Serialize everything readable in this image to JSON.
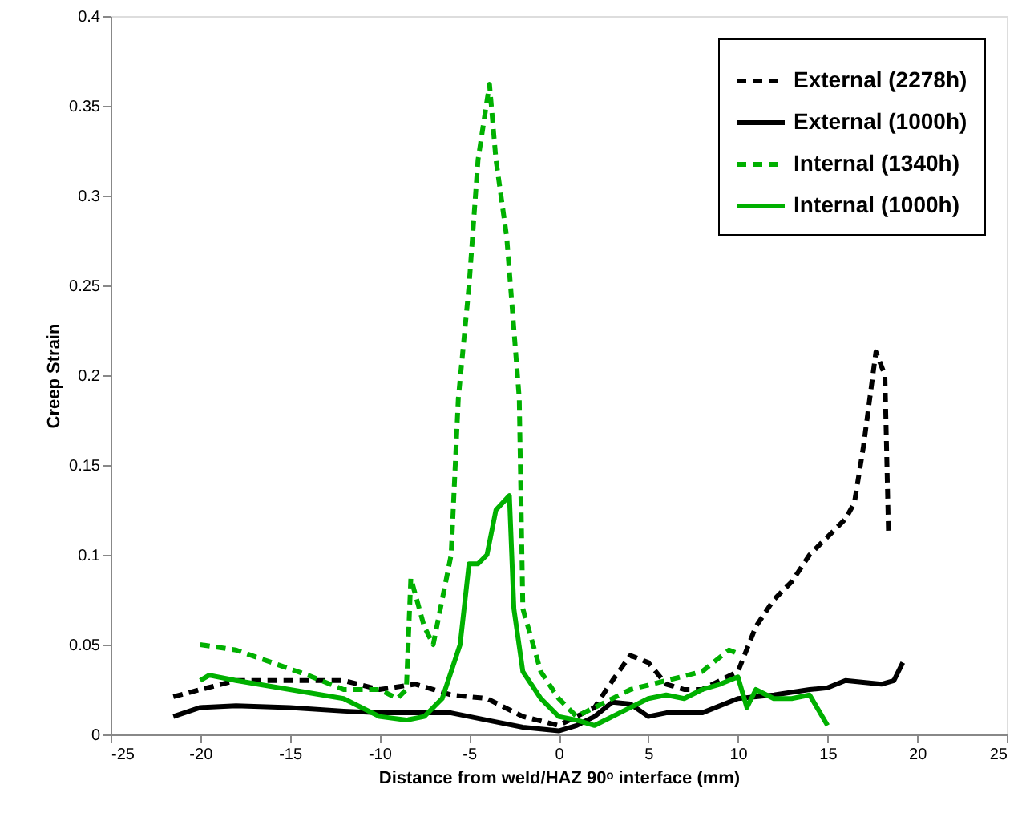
{
  "chart_data": {
    "type": "line",
    "xlabel": "Distance from weld/HAZ 90ᵒ interface (mm)",
    "ylabel": "Creep Strain",
    "xlim": [
      -25,
      25
    ],
    "xticks": [
      -25,
      -20,
      -15,
      -10,
      -5,
      0,
      5,
      10,
      15,
      20,
      25
    ],
    "ylim": [
      0,
      0.4
    ],
    "yticks": [
      0,
      0.05,
      0.1,
      0.15,
      0.2,
      0.25,
      0.3,
      0.35,
      0.4
    ],
    "grid": false,
    "legend": "top right",
    "marker": "none",
    "series": [
      {
        "name": "External (2278h)",
        "color": "#000000",
        "line_style": "dashed",
        "x": [
          -21.5,
          -20,
          -18,
          -15,
          -12,
          -10,
          -8,
          -6,
          -4,
          -2,
          0,
          2,
          3,
          4,
          5,
          6,
          7,
          8,
          9,
          10,
          11,
          12,
          13,
          14,
          15,
          16,
          16.5,
          17,
          17.7,
          18.2,
          18.4
        ],
        "values": [
          0.021,
          0.025,
          0.03,
          0.03,
          0.03,
          0.025,
          0.028,
          0.022,
          0.02,
          0.01,
          0.005,
          0.015,
          0.03,
          0.044,
          0.04,
          0.028,
          0.025,
          0.025,
          0.03,
          0.035,
          0.06,
          0.075,
          0.085,
          0.1,
          0.11,
          0.12,
          0.129,
          0.16,
          0.213,
          0.2,
          0.113
        ]
      },
      {
        "name": "External (1000h)",
        "color": "#000000",
        "line_style": "solid",
        "x": [
          -21.5,
          -20,
          -18,
          -15,
          -12,
          -10,
          -8,
          -6,
          -4,
          -2,
          0,
          1,
          2,
          3,
          4,
          5,
          6,
          8,
          10,
          12,
          14,
          15,
          16,
          18,
          18.7,
          19.2
        ],
        "values": [
          0.01,
          0.015,
          0.016,
          0.015,
          0.013,
          0.012,
          0.012,
          0.012,
          0.008,
          0.004,
          0.002,
          0.005,
          0.01,
          0.018,
          0.017,
          0.01,
          0.012,
          0.012,
          0.02,
          0.022,
          0.025,
          0.026,
          0.03,
          0.028,
          0.03,
          0.04
        ]
      },
      {
        "name": "Internal (1340h)",
        "color": "#00b000",
        "line_style": "dashed",
        "x": [
          -20,
          -18,
          -16,
          -14,
          -12,
          -10,
          -9,
          -8.5,
          -8.25,
          -7.5,
          -7,
          -6,
          -5.6,
          -5,
          -4.5,
          -3.86,
          -3.5,
          -2.9,
          -2.2,
          -2,
          -1,
          0,
          1,
          2,
          4,
          6,
          8,
          9.5,
          10
        ],
        "values": [
          0.05,
          0.047,
          0.04,
          0.033,
          0.025,
          0.025,
          0.02,
          0.025,
          0.087,
          0.06,
          0.05,
          0.1,
          0.187,
          0.25,
          0.32,
          0.362,
          0.32,
          0.277,
          0.187,
          0.07,
          0.035,
          0.02,
          0.01,
          0.015,
          0.025,
          0.03,
          0.035,
          0.047,
          0.045
        ]
      },
      {
        "name": "Internal (1000h)",
        "color": "#00b000",
        "line_style": "solid",
        "x": [
          -20,
          -19.5,
          -18,
          -15,
          -12,
          -10,
          -8.5,
          -7.5,
          -6.5,
          -5.5,
          -5,
          -4.5,
          -4,
          -3.5,
          -2.75,
          -2.5,
          -2,
          -1,
          0,
          1,
          2,
          3,
          4,
          5,
          6,
          7,
          8,
          9,
          10,
          10.5,
          11,
          12,
          13,
          14,
          15
        ],
        "values": [
          0.03,
          0.033,
          0.03,
          0.025,
          0.02,
          0.01,
          0.008,
          0.01,
          0.02,
          0.05,
          0.095,
          0.095,
          0.1,
          0.125,
          0.133,
          0.07,
          0.035,
          0.02,
          0.01,
          0.008,
          0.005,
          0.01,
          0.015,
          0.02,
          0.022,
          0.02,
          0.025,
          0.028,
          0.032,
          0.015,
          0.025,
          0.02,
          0.02,
          0.022,
          0.005
        ]
      }
    ]
  }
}
